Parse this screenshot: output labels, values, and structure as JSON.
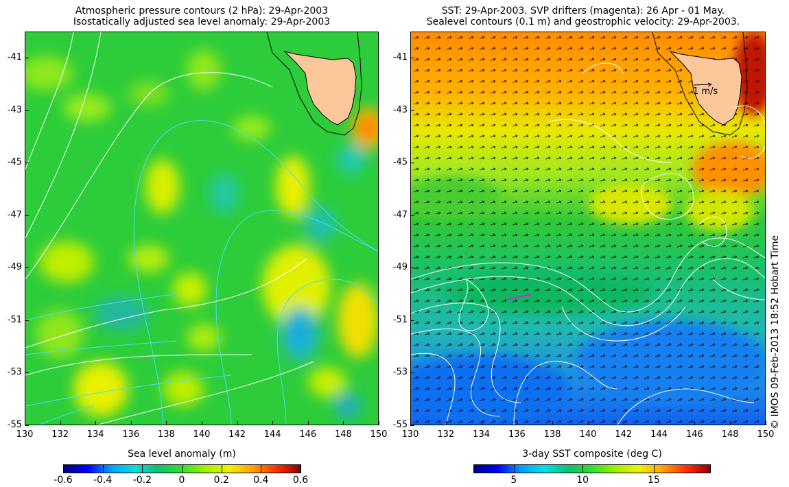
{
  "left_panel": {
    "title_line1": "Atmospheric pressure contours (2 hPa): 29-Apr-2003",
    "title_line2": "Isostatically adjusted sea level anomaly: 29-Apr-2003",
    "x_ticks": [
      "130",
      "132",
      "134",
      "136",
      "138",
      "140",
      "142",
      "144",
      "146",
      "148",
      "150"
    ],
    "y_ticks": [
      "-41",
      "-43",
      "-45",
      "-47",
      "-49",
      "-51",
      "-53",
      "-55"
    ],
    "colorbar": {
      "title": "Sea level anomaly (m)",
      "ticks": [
        "-0.6",
        "-0.4",
        "-0.2",
        "0",
        "0.2",
        "0.4",
        "0.6"
      ],
      "colors": [
        "#00007f",
        "#0000ff",
        "#00a0ff",
        "#00e0e0",
        "#10c070",
        "#30e030",
        "#a0f000",
        "#f0f000",
        "#ffa000",
        "#ff3000",
        "#900000"
      ]
    }
  },
  "right_panel": {
    "title_line1": "SST: 29-Apr-2003. SVP drifters (magenta): 26 Apr - 01 May.",
    "title_line2": "Sealevel contours (0.1 m) and geostrophic velocity: 29-Apr-2003.",
    "x_ticks": [
      "130",
      "132",
      "134",
      "136",
      "138",
      "140",
      "142",
      "144",
      "146",
      "148",
      "150"
    ],
    "y_ticks": [
      "-41",
      "-43",
      "-45",
      "-47",
      "-49",
      "-51",
      "-53",
      "-55"
    ],
    "velocity_scale": "1 m/s",
    "colorbar": {
      "title": "3-day SST composite (deg C)",
      "ticks": [
        "5",
        "10",
        "15"
      ],
      "colors": [
        "#00007f",
        "#0000ff",
        "#00a0ff",
        "#00e0e0",
        "#10c070",
        "#30e030",
        "#a0f000",
        "#f0f000",
        "#ffa000",
        "#ff3000",
        "#900000"
      ]
    }
  },
  "credit": "© IMOS 09-Feb-2013 18:52 Hobart Time",
  "colors": {
    "land": "#fcc79b",
    "ocean_green": "#22cc33",
    "contour_white": "#ffffff",
    "contour_cyan": "#40e0ff",
    "drifter": "#ff00ff"
  }
}
